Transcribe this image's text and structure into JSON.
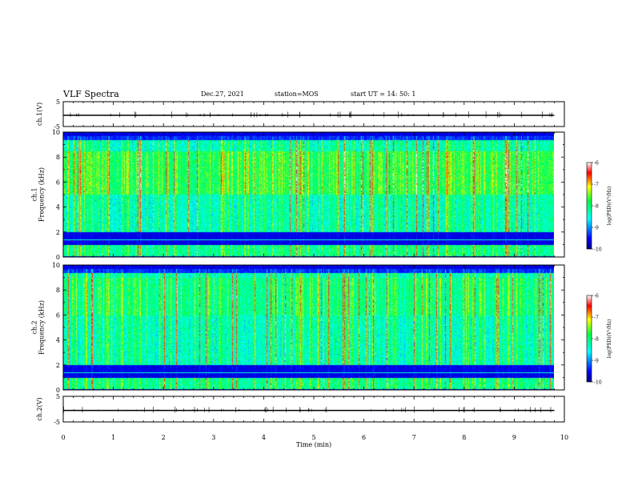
{
  "header": {
    "title": "VLF Spectra",
    "date": "Dec.27, 2021",
    "station": "station=MOS",
    "start": "start  UT =   14: 50: 1"
  },
  "chart_data": [
    {
      "type": "line",
      "panel": "ch1-waveform",
      "ylabel": "ch.1(V)",
      "ylim": [
        -5,
        5
      ],
      "yticks": [
        "5",
        "-5"
      ],
      "description_values": {
        "baseline_V": -0.5
      }
    },
    {
      "type": "heatmap",
      "panel": "ch1-spectrogram",
      "ylabel": "ch.1\nFrequency (kHz)",
      "ylim": [
        0,
        10
      ],
      "yticks": [
        "0",
        "2",
        "4",
        "6",
        "8",
        "10"
      ],
      "colorbar": {
        "label": "log(PSD)(V²/Hz)",
        "range": [
          -10,
          -6
        ],
        "ticks": [
          "-6",
          "-7",
          "-8",
          "-9",
          "-10"
        ]
      }
    },
    {
      "type": "heatmap",
      "panel": "ch2-spectrogram",
      "ylabel": "ch.2\nFrequency (kHz)",
      "ylim": [
        0,
        10
      ],
      "yticks": [
        "0",
        "2",
        "4",
        "6",
        "8",
        "10"
      ],
      "colorbar": {
        "label": "log(PSD)(V²/Hz)",
        "range": [
          -10,
          -6
        ],
        "ticks": [
          "-6",
          "-7",
          "-8",
          "-9",
          "-10"
        ]
      }
    },
    {
      "type": "line",
      "panel": "ch2-waveform",
      "ylabel": "ch.2(V)",
      "ylim": [
        -5,
        5
      ],
      "yticks": [
        "5",
        "-5"
      ],
      "description_values": {
        "baseline_V": -0.5
      }
    }
  ],
  "xaxis": {
    "label": "Time  (min)",
    "xlim": [
      0,
      10
    ],
    "ticks": [
      "0",
      "1",
      "2",
      "3",
      "4",
      "5",
      "6",
      "7",
      "8",
      "9",
      "10"
    ],
    "data_end_min": 9.8
  },
  "colors": {
    "low": "#00007f",
    "mid": "#00ff66",
    "high": "#ff0000",
    "axis": "#000000"
  }
}
